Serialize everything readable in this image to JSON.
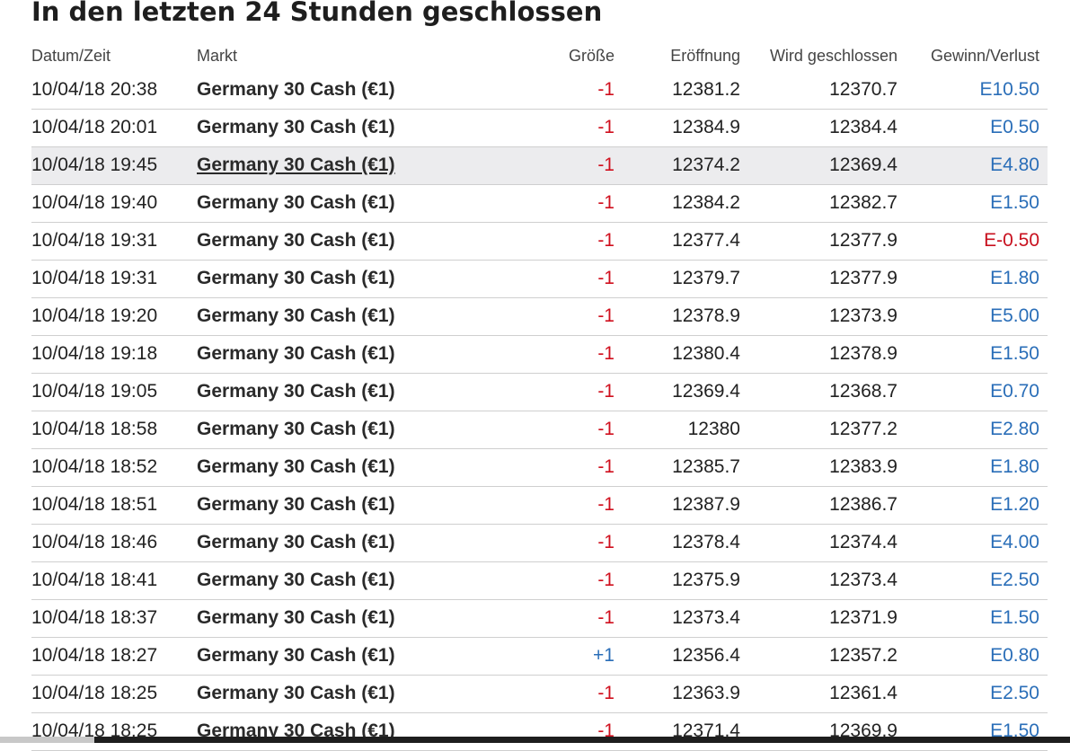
{
  "header": {
    "title": "In den letzten 24 Stunden geschlossen"
  },
  "table": {
    "columns": [
      "Datum/Zeit",
      "Markt",
      "Größe",
      "Eröffnung",
      "Wird geschlossen",
      "Gewinn/Verlust"
    ],
    "rows": [
      [
        "10/04/18 20:38",
        "Germany 30 Cash (€1)",
        "-1",
        "12381.2",
        "12370.7",
        "E10.50"
      ],
      [
        "10/04/18 20:01",
        "Germany 30 Cash (€1)",
        "-1",
        "12384.9",
        "12384.4",
        "E0.50"
      ],
      [
        "10/04/18 19:45",
        "Germany 30 Cash (€1)",
        "-1",
        "12374.2",
        "12369.4",
        "E4.80"
      ],
      [
        "10/04/18 19:40",
        "Germany 30 Cash (€1)",
        "-1",
        "12384.2",
        "12382.7",
        "E1.50"
      ],
      [
        "10/04/18 19:31",
        "Germany 30 Cash (€1)",
        "-1",
        "12377.4",
        "12377.9",
        "E-0.50"
      ],
      [
        "10/04/18 19:31",
        "Germany 30 Cash (€1)",
        "-1",
        "12379.7",
        "12377.9",
        "E1.80"
      ],
      [
        "10/04/18 19:20",
        "Germany 30 Cash (€1)",
        "-1",
        "12378.9",
        "12373.9",
        "E5.00"
      ],
      [
        "10/04/18 19:18",
        "Germany 30 Cash (€1)",
        "-1",
        "12380.4",
        "12378.9",
        "E1.50"
      ],
      [
        "10/04/18 19:05",
        "Germany 30 Cash (€1)",
        "-1",
        "12369.4",
        "12368.7",
        "E0.70"
      ],
      [
        "10/04/18 18:58",
        "Germany 30 Cash (€1)",
        "-1",
        "12380",
        "12377.2",
        "E2.80"
      ],
      [
        "10/04/18 18:52",
        "Germany 30 Cash (€1)",
        "-1",
        "12385.7",
        "12383.9",
        "E1.80"
      ],
      [
        "10/04/18 18:51",
        "Germany 30 Cash (€1)",
        "-1",
        "12387.9",
        "12386.7",
        "E1.20"
      ],
      [
        "10/04/18 18:46",
        "Germany 30 Cash (€1)",
        "-1",
        "12378.4",
        "12374.4",
        "E4.00"
      ],
      [
        "10/04/18 18:41",
        "Germany 30 Cash (€1)",
        "-1",
        "12375.9",
        "12373.4",
        "E2.50"
      ],
      [
        "10/04/18 18:37",
        "Germany 30 Cash (€1)",
        "-1",
        "12373.4",
        "12371.9",
        "E1.50"
      ],
      [
        "10/04/18 18:27",
        "Germany 30 Cash (€1)",
        "+1",
        "12356.4",
        "12357.2",
        "E0.80"
      ],
      [
        "10/04/18 18:25",
        "Germany 30 Cash (€1)",
        "-1",
        "12363.9",
        "12361.4",
        "E2.50"
      ],
      [
        "10/04/18 18:25",
        "Germany 30 Cash (€1)",
        "-1",
        "12371.4",
        "12369.9",
        "E1.50"
      ]
    ]
  }
}
